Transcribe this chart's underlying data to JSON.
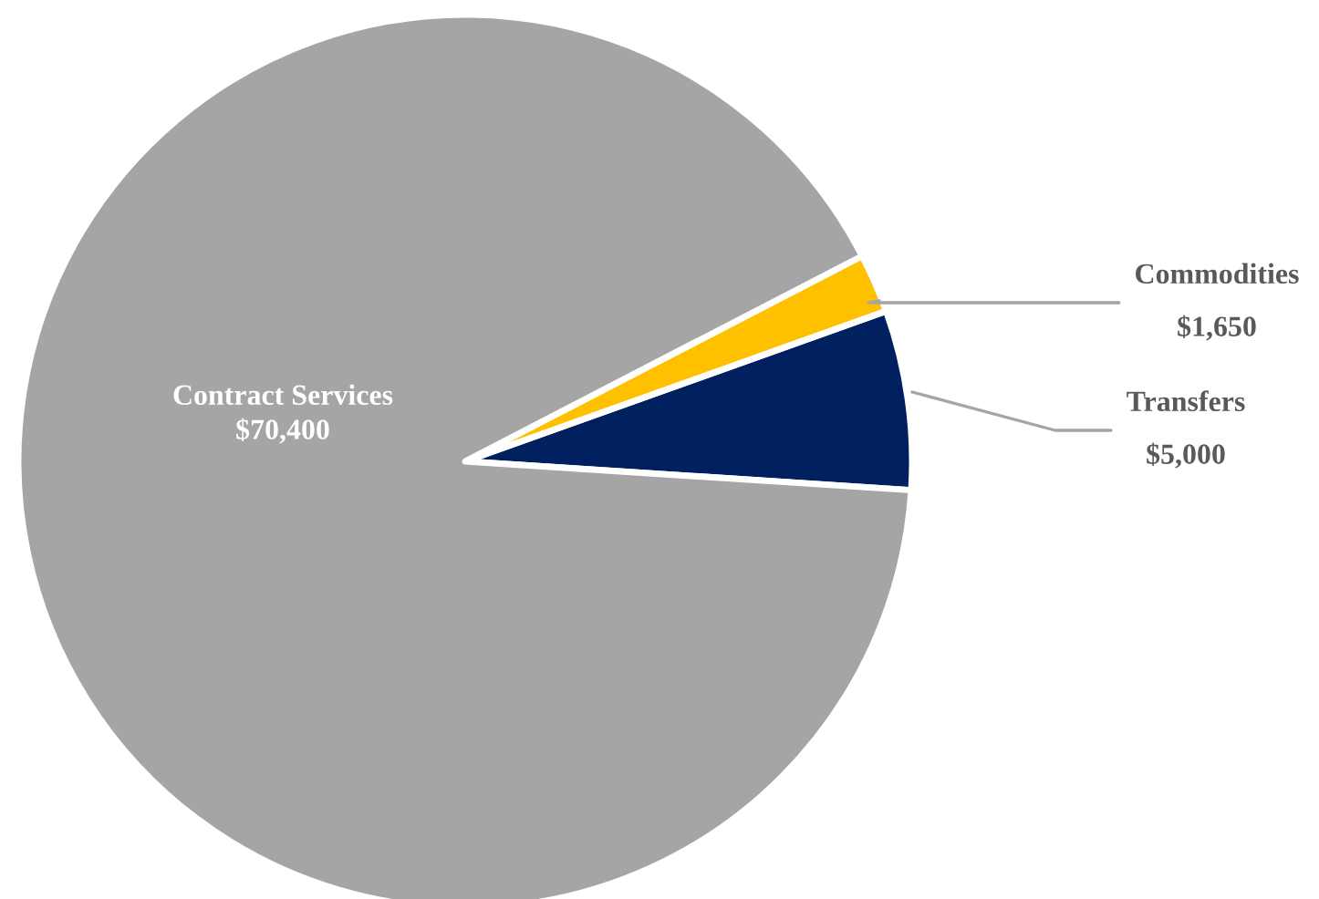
{
  "chart_data": {
    "type": "pie",
    "categories": [
      "Transfers",
      "Commodities",
      "Contract Services"
    ],
    "values": [
      5000,
      1650,
      70400
    ],
    "value_labels": [
      "$5,000",
      "$1,650",
      "$70,400"
    ],
    "colors": [
      "#002060",
      "#ffc000",
      "#a5a5a5"
    ],
    "legend": false
  }
}
